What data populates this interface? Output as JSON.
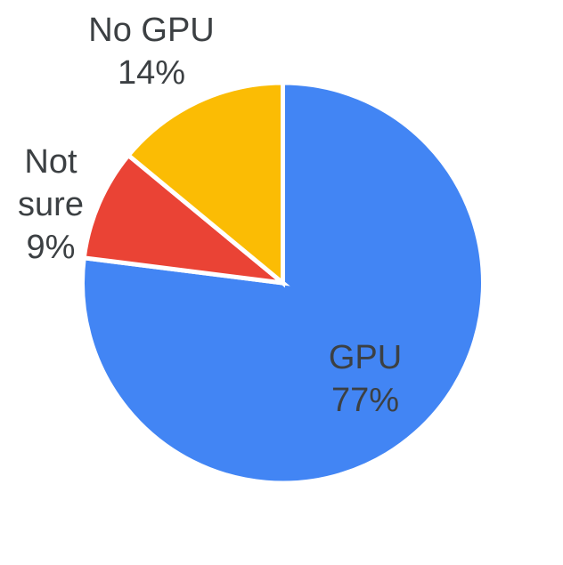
{
  "page": {
    "background": "#ffffff"
  },
  "chart_data": {
    "type": "pie",
    "title": "",
    "categories": [
      "GPU",
      "Not sure",
      "No GPU"
    ],
    "values": [
      77,
      9,
      14
    ],
    "unit": "%",
    "slices": [
      {
        "label": "GPU",
        "value": 77,
        "pct_label": "77%",
        "color": "#4285F4"
      },
      {
        "label": "Not sure",
        "value": 9,
        "pct_label": "9%",
        "color": "#EA4335"
      },
      {
        "label": "No GPU",
        "value": 14,
        "pct_label": "14%",
        "color": "#FBBC04"
      }
    ],
    "start_angle_deg": 0,
    "direction": "clockwise",
    "legend": "none",
    "label_style": "category-and-percent",
    "label_color": "#3c4043",
    "stroke_color": "#ffffff"
  }
}
